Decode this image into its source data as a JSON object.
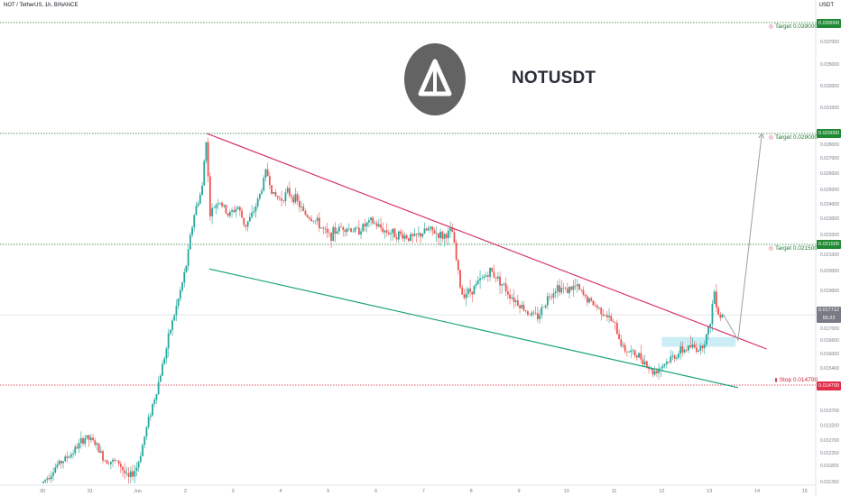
{
  "header": {
    "symbol_line": "NOT / TetherUS, 1h, BINANCE",
    "currency": "USDT"
  },
  "watermark": {
    "title": "NOTUSDT",
    "logo_icon": "toncoin-triangle-icon"
  },
  "price_axis_labels": [
    "0.039000",
    "0.037000",
    "0.035000",
    "0.033000",
    "0.031000",
    "0.029000",
    "0.028000",
    "0.027000",
    "0.026000",
    "0.025000",
    "0.024000",
    "0.023000",
    "0.022000",
    "0.021500",
    "0.021000",
    "0.020000",
    "0.019000",
    "0.018000",
    "0.017000",
    "0.016600",
    "0.016000",
    "0.015400",
    "0.014700",
    "0.013700",
    "0.013200",
    "0.012700",
    "0.012250",
    "0.011800",
    "0.011350"
  ],
  "levels": {
    "target_1": {
      "label": "Target 0.039000",
      "badge": "0.039000",
      "price": 0.039
    },
    "target_2": {
      "label": "Target 0.029000",
      "badge": "0.029000",
      "price": 0.029
    },
    "target_3": {
      "label": "Target 0.021500",
      "badge": "0.021500",
      "price": 0.0215
    },
    "stop": {
      "label": "Stop 0.014700",
      "badge": "0.014700",
      "price": 0.0147
    }
  },
  "last_price": {
    "value": "0.017712",
    "countdown": "55:23"
  },
  "colors": {
    "up": "#26a69a",
    "down": "#ef5350",
    "upper_trendline": "#d6336c",
    "lower_trendline": "#1aa37a",
    "target_green": "#1e7d2e",
    "stop_red": "#d01f3a",
    "zone_fill": "#b3e5f2",
    "projection": "#9e9e9e"
  },
  "chart_data": {
    "type": "candlestick",
    "title": "",
    "x_ticks": [
      "30",
      "31",
      "Jun",
      "2",
      "3",
      "4",
      "5",
      "6",
      "7",
      "8",
      "9",
      "10",
      "11",
      "12",
      "13",
      "14",
      "15"
    ],
    "price_path": [
      [
        0,
        0.0113
      ],
      [
        0.3,
        0.0118
      ],
      [
        0.6,
        0.0122
      ],
      [
        0.9,
        0.0128
      ],
      [
        1.1,
        0.0126
      ],
      [
        1.3,
        0.012
      ],
      [
        1.6,
        0.0119
      ],
      [
        1.8,
        0.0114
      ],
      [
        2.0,
        0.0118
      ],
      [
        2.2,
        0.0132
      ],
      [
        2.4,
        0.0145
      ],
      [
        2.6,
        0.0162
      ],
      [
        2.8,
        0.018
      ],
      [
        3.0,
        0.02
      ],
      [
        3.2,
        0.0235
      ],
      [
        3.35,
        0.025
      ],
      [
        3.45,
        0.029
      ],
      [
        3.5,
        0.0232
      ],
      [
        3.7,
        0.0243
      ],
      [
        3.9,
        0.0232
      ],
      [
        4.1,
        0.0238
      ],
      [
        4.25,
        0.0225
      ],
      [
        4.4,
        0.0232
      ],
      [
        4.55,
        0.0245
      ],
      [
        4.7,
        0.0262
      ],
      [
        4.85,
        0.0246
      ],
      [
        5.0,
        0.0243
      ],
      [
        5.15,
        0.0248
      ],
      [
        5.3,
        0.0244
      ],
      [
        5.5,
        0.0233
      ],
      [
        5.75,
        0.0228
      ],
      [
        6.0,
        0.0219
      ],
      [
        6.3,
        0.0225
      ],
      [
        6.6,
        0.0222
      ],
      [
        6.9,
        0.0228
      ],
      [
        7.2,
        0.0222
      ],
      [
        7.5,
        0.022
      ],
      [
        7.8,
        0.0218
      ],
      [
        8.1,
        0.0223
      ],
      [
        8.4,
        0.0219
      ],
      [
        8.6,
        0.0222
      ],
      [
        8.75,
        0.0195
      ],
      [
        8.8,
        0.0188
      ],
      [
        9.0,
        0.019
      ],
      [
        9.2,
        0.0195
      ],
      [
        9.4,
        0.02
      ],
      [
        9.6,
        0.0195
      ],
      [
        9.8,
        0.0188
      ],
      [
        10.0,
        0.0183
      ],
      [
        10.2,
        0.0178
      ],
      [
        10.4,
        0.0176
      ],
      [
        10.6,
        0.0186
      ],
      [
        10.8,
        0.0192
      ],
      [
        11.0,
        0.019
      ],
      [
        11.2,
        0.0192
      ],
      [
        11.4,
        0.0186
      ],
      [
        11.6,
        0.0182
      ],
      [
        11.8,
        0.0178
      ],
      [
        12.0,
        0.0172
      ],
      [
        12.2,
        0.0162
      ],
      [
        12.4,
        0.016
      ],
      [
        12.6,
        0.0158
      ],
      [
        12.8,
        0.0152
      ],
      [
        13.0,
        0.0155
      ],
      [
        13.2,
        0.0158
      ],
      [
        13.4,
        0.0161
      ],
      [
        13.6,
        0.0163
      ],
      [
        13.8,
        0.0162
      ],
      [
        14.0,
        0.017
      ],
      [
        14.1,
        0.019
      ],
      [
        14.2,
        0.0176
      ],
      [
        14.3,
        0.0178
      ]
    ],
    "upper_trendline": [
      [
        3.45,
        0.029
      ],
      [
        15.2,
        0.0162
      ]
    ],
    "lower_trendline": [
      [
        3.5,
        0.0201
      ],
      [
        14.6,
        0.0146
      ]
    ],
    "buy_zone": {
      "x": [
        13.0,
        14.55
      ],
      "y": [
        0.0163,
        0.0167
      ]
    },
    "projection": [
      [
        14.3,
        0.0177
      ],
      [
        14.6,
        0.0166
      ],
      [
        15.1,
        0.029
      ]
    ]
  }
}
